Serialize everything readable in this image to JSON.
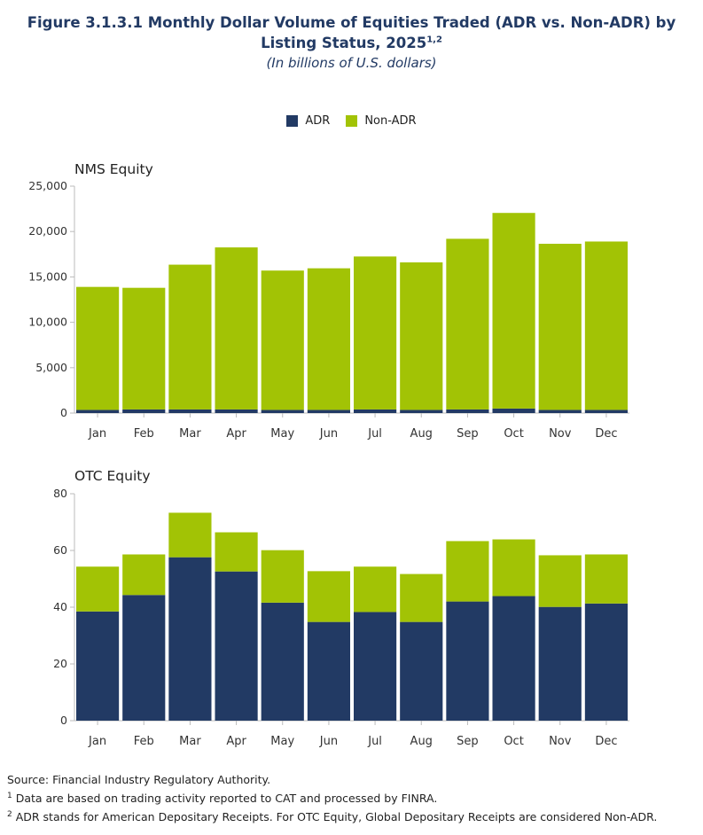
{
  "header": {
    "title": "Figure 3.1.3.1 Monthly Dollar Volume of Equities Traded (ADR vs. Non-ADR) by",
    "title_line2": "Listing Status, 2025",
    "title_sup": "1,2",
    "subtitle": "(In billions of U.S. dollars)"
  },
  "legend": [
    {
      "label": "ADR",
      "color": "#223a64"
    },
    {
      "label": "Non-ADR",
      "color": "#a2c305"
    }
  ],
  "chart_data": [
    {
      "type": "bar",
      "stacked": true,
      "title": "NMS Equity",
      "categories": [
        "Jan",
        "Feb",
        "Mar",
        "Apr",
        "May",
        "Jun",
        "Jul",
        "Aug",
        "Sep",
        "Oct",
        "Nov",
        "Dec"
      ],
      "series": [
        {
          "name": "ADR",
          "values": [
            350,
            400,
            400,
            400,
            350,
            350,
            400,
            350,
            400,
            500,
            350,
            350
          ]
        },
        {
          "name": "Non-ADR",
          "values": [
            13550,
            13400,
            15950,
            17850,
            15350,
            15600,
            16850,
            16250,
            18800,
            21550,
            18300,
            18550
          ]
        }
      ],
      "ylim": [
        0,
        25000
      ],
      "yticks": [
        "0",
        "5,000",
        "10,000",
        "15,000",
        "20,000",
        "25,000"
      ],
      "ytick_values": [
        0,
        5000,
        10000,
        15000,
        20000,
        25000
      ]
    },
    {
      "type": "bar",
      "stacked": true,
      "title": "OTC Equity",
      "categories": [
        "Jan",
        "Feb",
        "Mar",
        "Apr",
        "May",
        "Jun",
        "Jul",
        "Aug",
        "Sep",
        "Oct",
        "Nov",
        "Dec"
      ],
      "series": [
        {
          "name": "ADR",
          "values": [
            38.5,
            44.3,
            57.6,
            52.6,
            41.6,
            34.8,
            38.3,
            34.8,
            42.0,
            43.9,
            40.1,
            41.3
          ]
        },
        {
          "name": "Non-ADR",
          "values": [
            15.8,
            14.3,
            15.7,
            13.8,
            18.5,
            17.9,
            16.0,
            16.9,
            21.3,
            20.0,
            18.2,
            17.3
          ]
        }
      ],
      "ylim": [
        0,
        80
      ],
      "yticks": [
        "0",
        "20",
        "40",
        "60",
        "80"
      ],
      "ytick_values": [
        0,
        20,
        40,
        60,
        80
      ]
    }
  ],
  "footer": {
    "source": "Source: Financial Industry Regulatory Authority.",
    "note1_num": "1",
    "note1": " Data are based on trading activity reported to CAT and processed by FINRA.",
    "note2_num": "2",
    "note2": " ADR stands for American Depositary Receipts. For OTC Equity, Global Depositary Receipts are considered Non-ADR."
  }
}
